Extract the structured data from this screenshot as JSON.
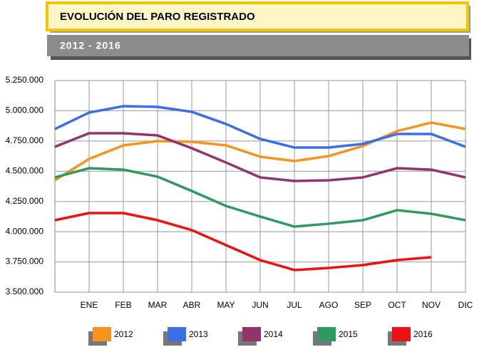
{
  "chart_data": {
    "type": "line",
    "title": "EVOLUCIÓN DEL PARO REGISTRADO",
    "subtitle": "2012 - 2016",
    "categories": [
      null,
      "ENE",
      "FEB",
      "MAR",
      "ABR",
      "MAY",
      "JUN",
      "JUL",
      "AGO",
      "SEP",
      "OCT",
      "NOV",
      "DIC"
    ],
    "series": [
      {
        "name": "2012",
        "color": "#f7941d",
        "values": [
          4425000,
          4602000,
          4714000,
          4749000,
          4743000,
          4714000,
          4620000,
          4584000,
          4625000,
          4708000,
          4832000,
          4902000,
          4849000
        ]
      },
      {
        "name": "2013",
        "color": "#3a6fe8",
        "values": [
          4849000,
          4985000,
          5038000,
          5032000,
          4991000,
          4891000,
          4767000,
          4696000,
          4696000,
          4726000,
          4808000,
          4808000,
          4702000
        ]
      },
      {
        "name": "2014",
        "color": "#92336a",
        "values": [
          4702000,
          4814000,
          4814000,
          4796000,
          4690000,
          4572000,
          4449000,
          4419000,
          4425000,
          4449000,
          4525000,
          4513000,
          4449000
        ]
      },
      {
        "name": "2015",
        "color": "#2e9a5e",
        "values": [
          4449000,
          4525000,
          4513000,
          4455000,
          4337000,
          4213000,
          4125000,
          4042000,
          4066000,
          4095000,
          4178000,
          4148000,
          4095000
        ]
      },
      {
        "name": "2016",
        "color": "#ee1111",
        "values": [
          4095000,
          4154000,
          4154000,
          4095000,
          4013000,
          3889000,
          3765000,
          3683000,
          3700000,
          3724000,
          3765000,
          3789000,
          null
        ]
      }
    ],
    "ylim": [
      3500000,
      5250000
    ],
    "yticks": [
      {
        "value": 3500000,
        "label": "3.500.000"
      },
      {
        "value": 3750000,
        "label": "3.750.000"
      },
      {
        "value": 4000000,
        "label": "4.000.000"
      },
      {
        "value": 4250000,
        "label": "4.250.000"
      },
      {
        "value": 4500000,
        "label": "4.500.000"
      },
      {
        "value": 4750000,
        "label": "4.750.000"
      },
      {
        "value": 5000000,
        "label": "5.000.000"
      },
      {
        "value": 5250000,
        "label": "5.250.000"
      }
    ],
    "grid": true
  }
}
